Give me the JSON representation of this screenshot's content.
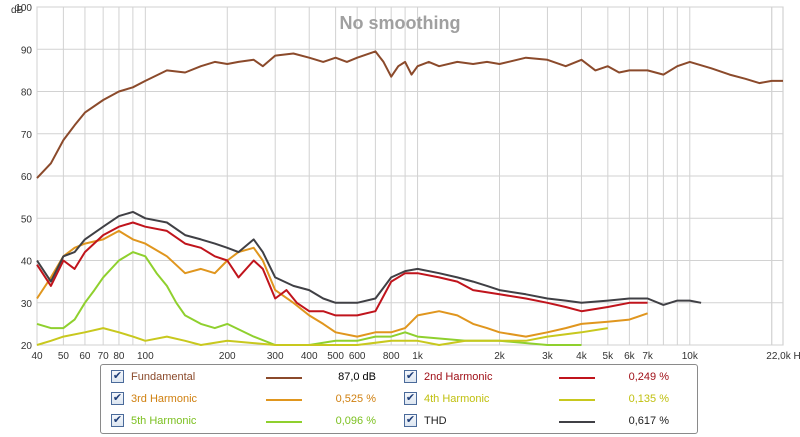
{
  "chart_data": {
    "type": "line",
    "title": "No smoothing",
    "xlabel": "Hz",
    "ylabel": "dB",
    "x_scale": "log",
    "xlim": [
      40,
      22000
    ],
    "ylim": [
      20,
      100
    ],
    "y_ticks": [
      20,
      30,
      40,
      50,
      60,
      70,
      80,
      90,
      100
    ],
    "x_ticks": [
      {
        "v": 40,
        "label": "40"
      },
      {
        "v": 50,
        "label": "50"
      },
      {
        "v": 60,
        "label": "60"
      },
      {
        "v": 70,
        "label": "70"
      },
      {
        "v": 80,
        "label": "80"
      },
      {
        "v": 100,
        "label": "100"
      },
      {
        "v": 200,
        "label": "200"
      },
      {
        "v": 300,
        "label": "300"
      },
      {
        "v": 400,
        "label": "400"
      },
      {
        "v": 500,
        "label": "500"
      },
      {
        "v": 600,
        "label": "600"
      },
      {
        "v": 800,
        "label": "800"
      },
      {
        "v": 1000,
        "label": "1k"
      },
      {
        "v": 2000,
        "label": "2k"
      },
      {
        "v": 3000,
        "label": "3k"
      },
      {
        "v": 4000,
        "label": "4k"
      },
      {
        "v": 5000,
        "label": "5k"
      },
      {
        "v": 6000,
        "label": "6k"
      },
      {
        "v": 7000,
        "label": "7k"
      },
      {
        "v": 10000,
        "label": "10k"
      },
      {
        "v": 22000,
        "label": "22,0k Hz"
      }
    ],
    "grid": true,
    "series": [
      {
        "name": "Fundamental",
        "value": "87,0 dB",
        "color": "#8B4A2B",
        "points": [
          [
            40,
            59.5
          ],
          [
            45,
            63
          ],
          [
            50,
            68.5
          ],
          [
            55,
            72
          ],
          [
            60,
            75
          ],
          [
            70,
            78
          ],
          [
            80,
            80
          ],
          [
            90,
            81
          ],
          [
            100,
            82.5
          ],
          [
            120,
            85
          ],
          [
            140,
            84.5
          ],
          [
            160,
            86
          ],
          [
            180,
            87
          ],
          [
            200,
            86.5
          ],
          [
            220,
            87
          ],
          [
            250,
            87.5
          ],
          [
            270,
            86
          ],
          [
            300,
            88.5
          ],
          [
            350,
            89
          ],
          [
            400,
            88
          ],
          [
            450,
            87
          ],
          [
            500,
            88
          ],
          [
            550,
            87
          ],
          [
            600,
            88
          ],
          [
            700,
            89.5
          ],
          [
            750,
            87
          ],
          [
            800,
            83.5
          ],
          [
            850,
            86
          ],
          [
            900,
            87
          ],
          [
            950,
            84
          ],
          [
            1000,
            86
          ],
          [
            1100,
            87
          ],
          [
            1200,
            86
          ],
          [
            1400,
            87
          ],
          [
            1600,
            86.5
          ],
          [
            1800,
            87
          ],
          [
            2000,
            86.5
          ],
          [
            2500,
            88
          ],
          [
            3000,
            87.5
          ],
          [
            3500,
            86
          ],
          [
            4000,
            87.5
          ],
          [
            4500,
            85
          ],
          [
            5000,
            86
          ],
          [
            5500,
            84.5
          ],
          [
            6000,
            85
          ],
          [
            7000,
            85
          ],
          [
            8000,
            84
          ],
          [
            9000,
            86
          ],
          [
            10000,
            87
          ],
          [
            12000,
            85.5
          ],
          [
            14000,
            84
          ],
          [
            16000,
            83
          ],
          [
            18000,
            82
          ],
          [
            20000,
            82.5
          ],
          [
            22000,
            82.5
          ]
        ]
      },
      {
        "name": "2nd Harmonic",
        "value": "0,249 %",
        "color": "#C0141C",
        "points": [
          [
            40,
            39
          ],
          [
            45,
            34
          ],
          [
            50,
            40
          ],
          [
            55,
            38
          ],
          [
            60,
            42
          ],
          [
            70,
            46
          ],
          [
            80,
            48
          ],
          [
            90,
            49
          ],
          [
            100,
            48
          ],
          [
            120,
            47
          ],
          [
            140,
            44
          ],
          [
            160,
            43
          ],
          [
            180,
            41
          ],
          [
            200,
            40
          ],
          [
            220,
            36
          ],
          [
            250,
            40
          ],
          [
            270,
            38
          ],
          [
            300,
            31
          ],
          [
            330,
            33
          ],
          [
            360,
            30
          ],
          [
            400,
            28
          ],
          [
            450,
            28
          ],
          [
            500,
            27
          ],
          [
            600,
            27
          ],
          [
            700,
            28
          ],
          [
            800,
            35
          ],
          [
            900,
            37
          ],
          [
            1000,
            37
          ],
          [
            1200,
            36
          ],
          [
            1400,
            35
          ],
          [
            1600,
            33
          ],
          [
            2000,
            32
          ],
          [
            2500,
            31
          ],
          [
            3000,
            30
          ],
          [
            3500,
            29
          ],
          [
            4000,
            28
          ],
          [
            5000,
            29
          ],
          [
            6000,
            30
          ],
          [
            7000,
            30
          ]
        ]
      },
      {
        "name": "3rd Harmonic",
        "value": "0,525 %",
        "color": "#E0961E",
        "points": [
          [
            40,
            31
          ],
          [
            45,
            36
          ],
          [
            50,
            41
          ],
          [
            55,
            43
          ],
          [
            60,
            44
          ],
          [
            70,
            45
          ],
          [
            80,
            47
          ],
          [
            90,
            45
          ],
          [
            100,
            44
          ],
          [
            120,
            41
          ],
          [
            140,
            37
          ],
          [
            160,
            38
          ],
          [
            180,
            37
          ],
          [
            200,
            40
          ],
          [
            220,
            42
          ],
          [
            250,
            43
          ],
          [
            270,
            40
          ],
          [
            300,
            33
          ],
          [
            350,
            30
          ],
          [
            400,
            27
          ],
          [
            450,
            25
          ],
          [
            500,
            23
          ],
          [
            600,
            22
          ],
          [
            700,
            23
          ],
          [
            800,
            23
          ],
          [
            900,
            24
          ],
          [
            1000,
            27
          ],
          [
            1200,
            28
          ],
          [
            1400,
            27
          ],
          [
            1600,
            25
          ],
          [
            1800,
            24
          ],
          [
            2000,
            23
          ],
          [
            2500,
            22
          ],
          [
            3000,
            23
          ],
          [
            3500,
            24
          ],
          [
            4000,
            25
          ],
          [
            5000,
            25.5
          ],
          [
            6000,
            26
          ],
          [
            7000,
            27.5
          ]
        ]
      },
      {
        "name": "4th Harmonic",
        "value": "0,135 %",
        "color": "#C8C81E",
        "points": [
          [
            40,
            20
          ],
          [
            45,
            21
          ],
          [
            50,
            22
          ],
          [
            60,
            23
          ],
          [
            70,
            24
          ],
          [
            80,
            23
          ],
          [
            90,
            22
          ],
          [
            100,
            21
          ],
          [
            120,
            22
          ],
          [
            140,
            21
          ],
          [
            160,
            20
          ],
          [
            200,
            21
          ],
          [
            300,
            20
          ],
          [
            400,
            20
          ],
          [
            600,
            20
          ],
          [
            800,
            21
          ],
          [
            1000,
            21
          ],
          [
            1200,
            20
          ],
          [
            1500,
            21
          ],
          [
            2000,
            21
          ],
          [
            2500,
            21
          ],
          [
            3000,
            22
          ],
          [
            4000,
            23
          ],
          [
            5000,
            24
          ]
        ]
      },
      {
        "name": "5th Harmonic",
        "value": "0,096 %",
        "color": "#8FD02E",
        "points": [
          [
            40,
            25
          ],
          [
            45,
            24
          ],
          [
            50,
            24
          ],
          [
            55,
            26
          ],
          [
            60,
            30
          ],
          [
            65,
            33
          ],
          [
            70,
            36
          ],
          [
            80,
            40
          ],
          [
            90,
            42
          ],
          [
            100,
            41
          ],
          [
            110,
            37
          ],
          [
            120,
            34
          ],
          [
            130,
            30
          ],
          [
            140,
            27
          ],
          [
            160,
            25
          ],
          [
            180,
            24
          ],
          [
            200,
            25
          ],
          [
            250,
            22
          ],
          [
            300,
            20
          ],
          [
            400,
            20
          ],
          [
            500,
            21
          ],
          [
            600,
            21
          ],
          [
            700,
            22
          ],
          [
            800,
            22
          ],
          [
            900,
            23
          ],
          [
            1000,
            22
          ],
          [
            1500,
            21
          ],
          [
            2000,
            21
          ],
          [
            3000,
            20
          ],
          [
            4000,
            20
          ]
        ]
      },
      {
        "name": "THD",
        "value": "0,617 %",
        "color": "#404045",
        "points": [
          [
            40,
            40
          ],
          [
            45,
            35
          ],
          [
            50,
            41
          ],
          [
            55,
            42
          ],
          [
            60,
            45
          ],
          [
            70,
            48
          ],
          [
            80,
            50.5
          ],
          [
            90,
            51.5
          ],
          [
            100,
            50
          ],
          [
            120,
            49
          ],
          [
            140,
            46
          ],
          [
            160,
            45
          ],
          [
            180,
            44
          ],
          [
            200,
            43
          ],
          [
            220,
            42
          ],
          [
            250,
            45
          ],
          [
            270,
            42
          ],
          [
            300,
            36
          ],
          [
            350,
            34
          ],
          [
            400,
            33
          ],
          [
            450,
            31
          ],
          [
            500,
            30
          ],
          [
            600,
            30
          ],
          [
            700,
            31
          ],
          [
            800,
            36
          ],
          [
            900,
            37.5
          ],
          [
            1000,
            38
          ],
          [
            1200,
            37
          ],
          [
            1400,
            36
          ],
          [
            1600,
            35
          ],
          [
            1800,
            34
          ],
          [
            2000,
            33
          ],
          [
            2500,
            32
          ],
          [
            3000,
            31
          ],
          [
            3500,
            30.5
          ],
          [
            4000,
            30
          ],
          [
            5000,
            30.5
          ],
          [
            6000,
            31
          ],
          [
            7000,
            31
          ],
          [
            8000,
            29.5
          ],
          [
            9000,
            30.5
          ],
          [
            10000,
            30.5
          ],
          [
            11000,
            30
          ]
        ]
      }
    ]
  },
  "legend": {
    "items": [
      {
        "label": "Fundamental",
        "value": "87,0 dB",
        "color": "#8B4A2B",
        "label_color": "#8B4A2B"
      },
      {
        "label": "2nd Harmonic",
        "value": "0,249 %",
        "color": "#C0141C",
        "label_color": "#A01018"
      },
      {
        "label": "3rd Harmonic",
        "value": "0,525 %",
        "color": "#E0961E",
        "label_color": "#D08010"
      },
      {
        "label": "4th Harmonic",
        "value": "0,135 %",
        "color": "#C8C81E",
        "label_color": "#C0C010"
      },
      {
        "label": "5th Harmonic",
        "value": "0,096 %",
        "color": "#8FD02E",
        "label_color": "#7CC020"
      },
      {
        "label": "THD",
        "value": "0,617 %",
        "color": "#404045",
        "label_color": "#202020"
      }
    ]
  }
}
